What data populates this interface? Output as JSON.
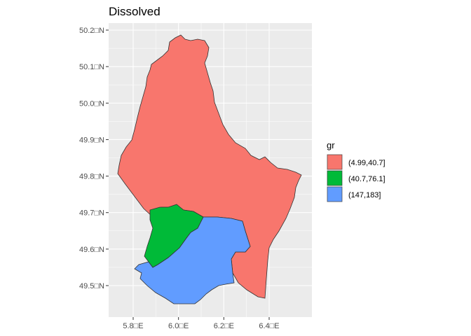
{
  "title": "Dissolved",
  "panel_background": "#ebebeb",
  "grid_color": "#ffffff",
  "outline_color": "#333333",
  "x_axis": {
    "ticks": [
      {
        "value": 5.8,
        "label": "5.8□E"
      },
      {
        "value": 6.0,
        "label": "6.0□E"
      },
      {
        "value": 6.2,
        "label": "6.2□E"
      },
      {
        "value": 6.4,
        "label": "6.4□E"
      }
    ]
  },
  "y_axis": {
    "ticks": [
      {
        "value": 49.5,
        "label": "49.5□N"
      },
      {
        "value": 49.6,
        "label": "49.6□N"
      },
      {
        "value": 49.7,
        "label": "49.7□N"
      },
      {
        "value": 49.8,
        "label": "49.8□N"
      },
      {
        "value": 49.9,
        "label": "49.9□N"
      },
      {
        "value": 50.0,
        "label": "50.0□N"
      },
      {
        "value": 50.1,
        "label": "50.1□N"
      },
      {
        "value": 50.2,
        "label": "50.2□N"
      }
    ]
  },
  "legend": {
    "title": "gr",
    "placement": "right",
    "items": [
      {
        "label": "(4.99,40.7]",
        "color": "#f8766d"
      },
      {
        "label": "(40.7,76.1]",
        "color": "#00ba38"
      },
      {
        "label": "(147,183]",
        "color": "#619cff"
      }
    ]
  },
  "regions": [
    {
      "group": "(4.99,40.7]",
      "color": "#f8766d"
    },
    {
      "group": "(147,183]",
      "color": "#619cff"
    },
    {
      "group": "(40.7,76.1]",
      "color": "#00ba38"
    }
  ]
}
